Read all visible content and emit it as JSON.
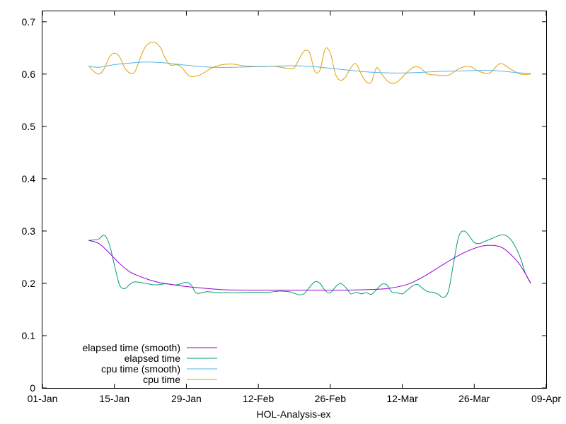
{
  "chart_data": {
    "type": "line",
    "title": "",
    "xlabel": "HOL-Analysis-ex",
    "ylabel": "",
    "xlim": [
      "2021-01-01",
      "2021-04-09"
    ],
    "ylim": [
      0,
      0.72
    ],
    "x_ticks": [
      "01-Jan",
      "15-Jan",
      "29-Jan",
      "12-Feb",
      "26-Feb",
      "12-Mar",
      "26-Mar",
      "09-Apr"
    ],
    "y_ticks": [
      "0",
      "0.1",
      "0.2",
      "0.3",
      "0.4",
      "0.5",
      "0.6",
      "0.7"
    ],
    "legend_position": "bottom-left",
    "grid": false,
    "series": [
      {
        "name": "elapsed time (smooth)",
        "color": "#9400d3",
        "x": [
          "2021-01-10",
          "2021-01-12",
          "2021-01-14",
          "2021-01-16",
          "2021-01-18",
          "2021-01-20",
          "2021-01-22",
          "2021-01-24",
          "2021-01-26",
          "2021-01-28",
          "2021-02-01",
          "2021-02-05",
          "2021-02-10",
          "2021-02-15",
          "2021-02-20",
          "2021-02-25",
          "2021-03-01",
          "2021-03-05",
          "2021-03-09",
          "2021-03-13",
          "2021-03-16",
          "2021-03-19",
          "2021-03-22",
          "2021-03-25",
          "2021-03-28",
          "2021-03-31",
          "2021-04-02",
          "2021-04-04",
          "2021-04-06"
        ],
        "values": [
          0.282,
          0.276,
          0.258,
          0.238,
          0.222,
          0.213,
          0.206,
          0.201,
          0.198,
          0.195,
          0.191,
          0.188,
          0.187,
          0.187,
          0.187,
          0.187,
          0.187,
          0.188,
          0.19,
          0.198,
          0.212,
          0.23,
          0.248,
          0.263,
          0.272,
          0.27,
          0.256,
          0.234,
          0.2
        ]
      },
      {
        "name": "elapsed time",
        "color": "#009e73",
        "x": [
          "2021-01-10",
          "2021-01-11",
          "2021-01-12",
          "2021-01-13",
          "2021-01-14",
          "2021-01-15",
          "2021-01-16",
          "2021-01-17",
          "2021-01-18",
          "2021-01-19",
          "2021-01-21",
          "2021-01-23",
          "2021-01-25",
          "2021-01-27",
          "2021-01-29",
          "2021-01-30",
          "2021-01-31",
          "2021-02-02",
          "2021-02-04",
          "2021-02-06",
          "2021-02-08",
          "2021-02-10",
          "2021-02-12",
          "2021-02-14",
          "2021-02-16",
          "2021-02-18",
          "2021-02-19",
          "2021-02-20",
          "2021-02-21",
          "2021-02-22",
          "2021-02-23",
          "2021-02-24",
          "2021-02-25",
          "2021-02-26",
          "2021-02-27",
          "2021-02-28",
          "2021-03-01",
          "2021-03-02",
          "2021-03-03",
          "2021-03-04",
          "2021-03-05",
          "2021-03-06",
          "2021-03-07",
          "2021-03-08",
          "2021-03-09",
          "2021-03-10",
          "2021-03-11",
          "2021-03-12",
          "2021-03-13",
          "2021-03-14",
          "2021-03-15",
          "2021-03-16",
          "2021-03-17",
          "2021-03-18",
          "2021-03-19",
          "2021-03-20",
          "2021-03-21",
          "2021-03-22",
          "2021-03-23",
          "2021-03-24",
          "2021-03-25",
          "2021-03-26",
          "2021-03-27",
          "2021-03-28",
          "2021-03-29",
          "2021-03-30",
          "2021-03-31",
          "2021-04-01",
          "2021-04-02",
          "2021-04-03",
          "2021-04-04",
          "2021-04-05",
          "2021-04-06"
        ],
        "values": [
          0.282,
          0.283,
          0.285,
          0.292,
          0.275,
          0.235,
          0.197,
          0.19,
          0.198,
          0.203,
          0.2,
          0.197,
          0.199,
          0.197,
          0.202,
          0.196,
          0.181,
          0.184,
          0.182,
          0.182,
          0.182,
          0.183,
          0.183,
          0.183,
          0.185,
          0.184,
          0.181,
          0.178,
          0.181,
          0.193,
          0.203,
          0.2,
          0.186,
          0.182,
          0.193,
          0.2,
          0.192,
          0.18,
          0.183,
          0.18,
          0.182,
          0.179,
          0.188,
          0.198,
          0.197,
          0.183,
          0.182,
          0.18,
          0.187,
          0.195,
          0.198,
          0.19,
          0.184,
          0.183,
          0.179,
          0.173,
          0.186,
          0.24,
          0.29,
          0.3,
          0.291,
          0.278,
          0.276,
          0.28,
          0.284,
          0.288,
          0.292,
          0.292,
          0.285,
          0.27,
          0.248,
          0.218,
          0.2
        ]
      },
      {
        "name": "cpu time (smooth)",
        "color": "#56b4e9",
        "x": [
          "2021-01-10",
          "2021-01-12",
          "2021-01-15",
          "2021-01-18",
          "2021-01-21",
          "2021-01-24",
          "2021-01-27",
          "2021-01-30",
          "2021-02-03",
          "2021-02-07",
          "2021-02-11",
          "2021-02-15",
          "2021-02-19",
          "2021-02-23",
          "2021-02-27",
          "2021-03-03",
          "2021-03-07",
          "2021-03-11",
          "2021-03-15",
          "2021-03-19",
          "2021-03-23",
          "2021-03-27",
          "2021-03-31",
          "2021-04-03",
          "2021-04-06"
        ],
        "values": [
          0.615,
          0.613,
          0.618,
          0.621,
          0.623,
          0.622,
          0.619,
          0.616,
          0.613,
          0.613,
          0.614,
          0.615,
          0.616,
          0.614,
          0.61,
          0.606,
          0.603,
          0.602,
          0.603,
          0.605,
          0.606,
          0.607,
          0.606,
          0.603,
          0.601
        ]
      },
      {
        "name": "cpu time",
        "color": "#e69f00",
        "x": [
          "2021-01-10",
          "2021-01-11",
          "2021-01-12",
          "2021-01-13",
          "2021-01-14",
          "2021-01-15",
          "2021-01-16",
          "2021-01-17",
          "2021-01-18",
          "2021-01-19",
          "2021-01-20",
          "2021-01-21",
          "2021-01-22",
          "2021-01-23",
          "2021-01-24",
          "2021-01-25",
          "2021-01-26",
          "2021-01-27",
          "2021-01-28",
          "2021-01-29",
          "2021-01-30",
          "2021-02-01",
          "2021-02-03",
          "2021-02-05",
          "2021-02-07",
          "2021-02-09",
          "2021-02-11",
          "2021-02-13",
          "2021-02-15",
          "2021-02-17",
          "2021-02-18",
          "2021-02-19",
          "2021-02-20",
          "2021-02-21",
          "2021-02-22",
          "2021-02-23",
          "2021-02-24",
          "2021-02-25",
          "2021-02-26",
          "2021-02-27",
          "2021-02-28",
          "2021-03-01",
          "2021-03-02",
          "2021-03-03",
          "2021-03-04",
          "2021-03-05",
          "2021-03-06",
          "2021-03-07",
          "2021-03-08",
          "2021-03-09",
          "2021-03-10",
          "2021-03-11",
          "2021-03-12",
          "2021-03-13",
          "2021-03-14",
          "2021-03-15",
          "2021-03-16",
          "2021-03-17",
          "2021-03-19",
          "2021-03-21",
          "2021-03-23",
          "2021-03-25",
          "2021-03-27",
          "2021-03-29",
          "2021-03-31",
          "2021-04-02",
          "2021-04-04",
          "2021-04-06"
        ],
        "values": [
          0.616,
          0.605,
          0.6,
          0.61,
          0.632,
          0.64,
          0.633,
          0.612,
          0.602,
          0.605,
          0.63,
          0.652,
          0.66,
          0.66,
          0.65,
          0.628,
          0.617,
          0.618,
          0.614,
          0.602,
          0.595,
          0.6,
          0.612,
          0.618,
          0.619,
          0.616,
          0.615,
          0.614,
          0.615,
          0.612,
          0.611,
          0.612,
          0.63,
          0.645,
          0.64,
          0.605,
          0.608,
          0.648,
          0.64,
          0.6,
          0.588,
          0.595,
          0.612,
          0.62,
          0.6,
          0.585,
          0.585,
          0.612,
          0.6,
          0.588,
          0.582,
          0.585,
          0.594,
          0.604,
          0.612,
          0.614,
          0.608,
          0.6,
          0.598,
          0.598,
          0.61,
          0.615,
          0.605,
          0.602,
          0.62,
          0.61,
          0.6,
          0.6
        ]
      }
    ]
  }
}
